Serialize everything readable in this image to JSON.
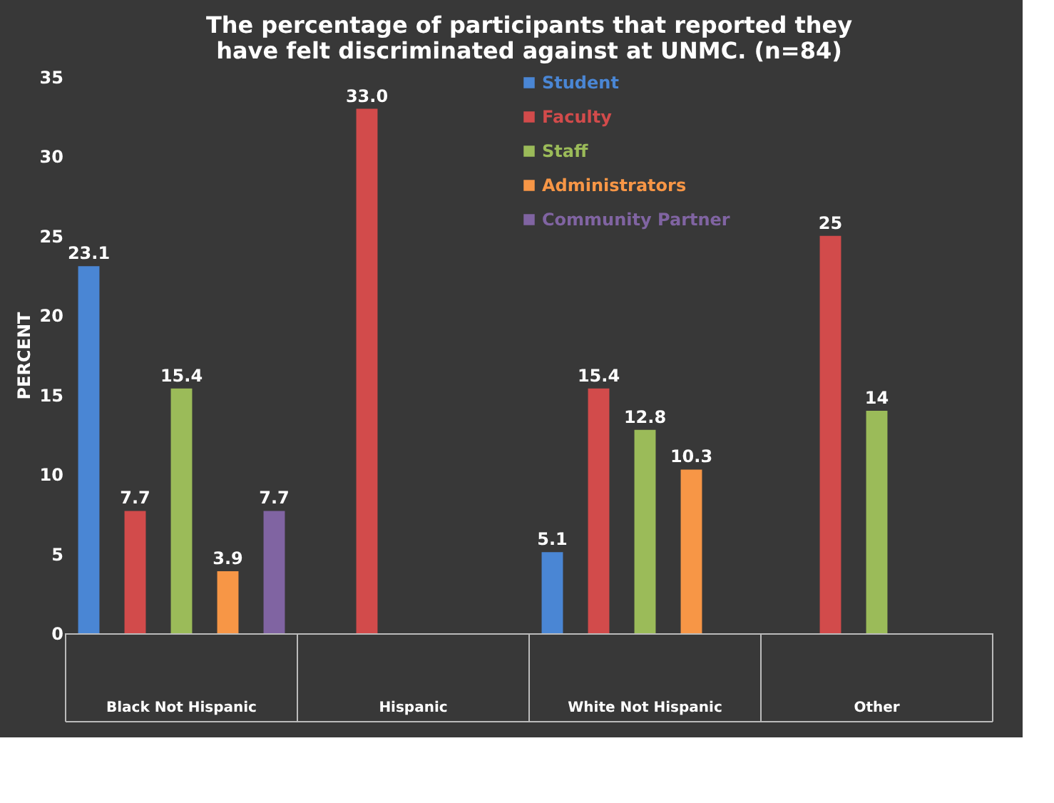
{
  "chart_data": {
    "type": "bar",
    "title": [
      "The percentage of participants that reported they",
      "have felt discriminated against at UNMC. (n=84)"
    ],
    "ylabel": "PERCENT",
    "categories": [
      "Black Not Hispanic",
      "Hispanic",
      "White Not Hispanic",
      "Other"
    ],
    "series": [
      {
        "name": "Student",
        "color": "#4a86d4",
        "values": [
          23.1,
          null,
          5.1,
          null
        ],
        "value_labels": [
          "23.1",
          null,
          "5.1",
          null
        ]
      },
      {
        "name": "Faculty",
        "color": "#d24b4b",
        "values": [
          7.7,
          33.0,
          15.4,
          25
        ],
        "value_labels": [
          "7.7",
          "33.0",
          "15.4",
          "25"
        ]
      },
      {
        "name": "Staff",
        "color": "#9bbb59",
        "values": [
          15.4,
          null,
          12.8,
          14
        ],
        "value_labels": [
          "15.4",
          null,
          "12.8",
          "14"
        ]
      },
      {
        "name": "Administrators",
        "color": "#f79646",
        "values": [
          3.9,
          null,
          10.3,
          null
        ],
        "value_labels": [
          "3.9",
          null,
          "10.3",
          null
        ]
      },
      {
        "name": "Community Partner",
        "color": "#8064a2",
        "values": [
          7.7,
          null,
          null,
          null
        ],
        "value_labels": [
          "7.7",
          null,
          null,
          null
        ]
      }
    ],
    "ylim": [
      0,
      35
    ],
    "yticks": [
      0,
      5,
      10,
      15,
      20,
      25,
      30,
      35
    ],
    "grid": false,
    "legend": "top",
    "data_labels": true
  }
}
